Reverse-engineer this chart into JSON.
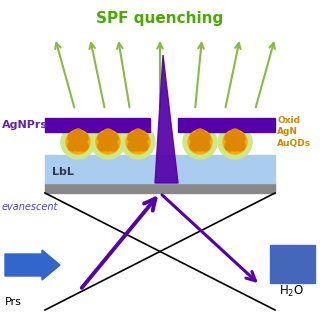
{
  "bg_color": "#ffffff",
  "title": "SPF quenching",
  "title_color": "#4aaa00",
  "title_fontsize": 11,
  "lbl_label": "LbL",
  "AgNPrs_label": "AgNPrs",
  "AgNPrs_color": "#6622aa",
  "OxidColor": "#cc8800",
  "evanescent_color": "#4444cc",
  "purple": "#5500aa",
  "blue_arrow": "#3366cc",
  "blue_rect": "#4466bb",
  "green_arrow": "#88bb44",
  "gray": "#888888",
  "light_blue": "#aaccee",
  "dot_outer": "#cce888",
  "dot_inner": "#ffaa00",
  "dot_dark": "#dd8800"
}
